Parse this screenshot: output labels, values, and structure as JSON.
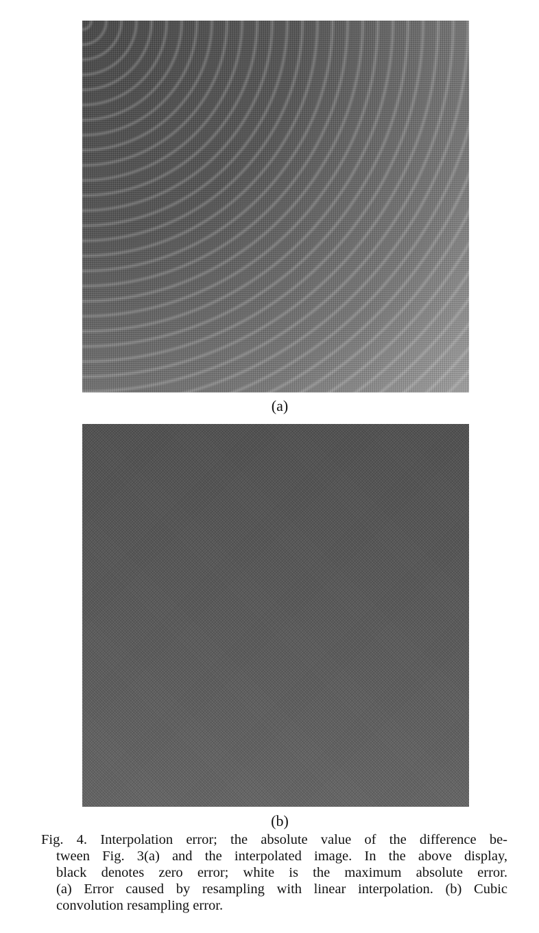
{
  "figure": {
    "panels": [
      {
        "id": "a",
        "label": "(a)"
      },
      {
        "id": "b",
        "label": "(b)"
      }
    ],
    "caption_lines": [
      "Fig. 4.  Interpolation error; the absolute value of the difference be-",
      "tween Fig. 3(a) and the interpolated image.  In the above display,",
      "black denotes zero error; white is the maximum absolute error.",
      "(a) Error caused by resampling with linear interpolation.  (b) Cubic",
      "convolution resampling error."
    ]
  },
  "colors": {
    "background": "#ffffff",
    "text": "#111111"
  }
}
